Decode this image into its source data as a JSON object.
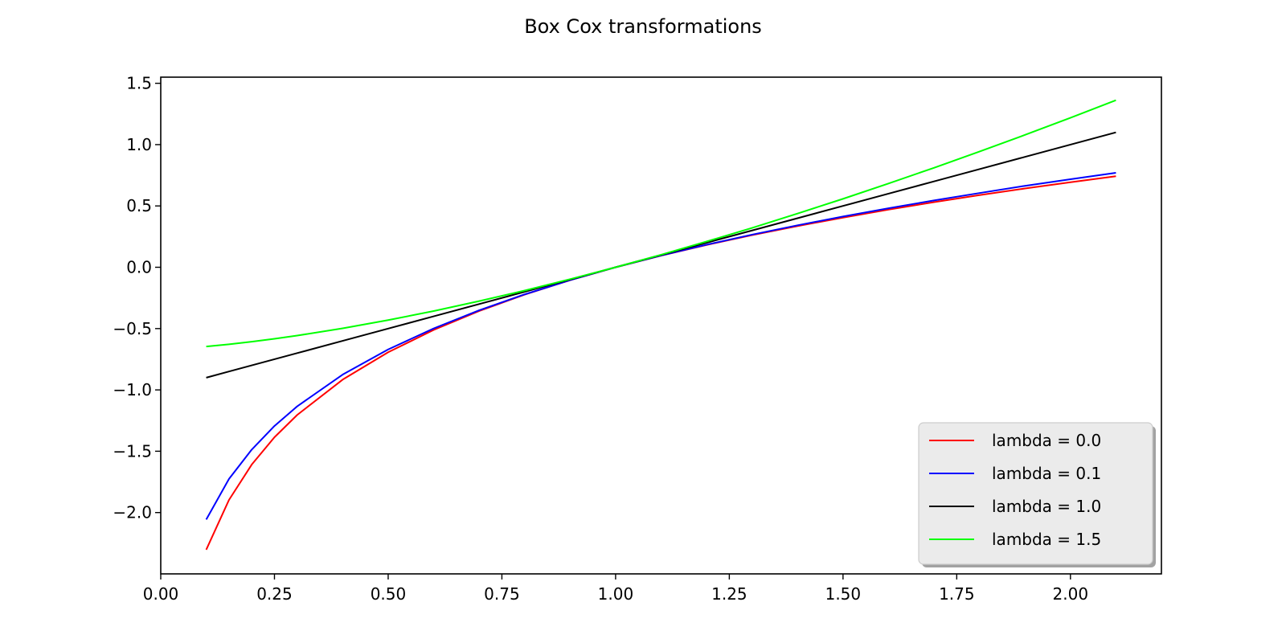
{
  "chart_data": {
    "type": "line",
    "title": "Box Cox transformations",
    "xlabel": "",
    "ylabel": "",
    "xlim": [
      0.0,
      2.2
    ],
    "ylim": [
      -2.5,
      1.55
    ],
    "x_ticks": [
      0.0,
      0.25,
      0.5,
      0.75,
      1.0,
      1.25,
      1.5,
      1.75,
      2.0
    ],
    "x_tick_labels": [
      "0.00",
      "0.25",
      "0.50",
      "0.75",
      "1.00",
      "1.25",
      "1.50",
      "1.75",
      "2.00"
    ],
    "y_ticks": [
      -2.0,
      -1.5,
      -1.0,
      -0.5,
      0.0,
      0.5,
      1.0,
      1.5
    ],
    "y_tick_labels": [
      "−2.0",
      "−1.5",
      "−1.0",
      "−0.5",
      "0.0",
      "0.5",
      "1.0",
      "1.5"
    ],
    "grid": false,
    "legend_position": "lower-right",
    "x": [
      0.1,
      0.15,
      0.2,
      0.25,
      0.3,
      0.4,
      0.5,
      0.6,
      0.7,
      0.8,
      0.9,
      1.0,
      1.1,
      1.2,
      1.3,
      1.4,
      1.5,
      1.6,
      1.7,
      1.8,
      1.9,
      2.0,
      2.1
    ],
    "series": [
      {
        "name": "lambda = 0.0",
        "color": "#ff0000",
        "values": [
          -2.303,
          -1.897,
          -1.609,
          -1.386,
          -1.204,
          -0.916,
          -0.693,
          -0.511,
          -0.357,
          -0.223,
          -0.105,
          0.0,
          0.095,
          0.182,
          0.262,
          0.336,
          0.405,
          0.47,
          0.531,
          0.588,
          0.642,
          0.693,
          0.742
        ]
      },
      {
        "name": "lambda = 0.1",
        "color": "#0000ff",
        "values": [
          -2.057,
          -1.726,
          -1.487,
          -1.294,
          -1.134,
          -0.875,
          -0.67,
          -0.499,
          -0.351,
          -0.221,
          -0.105,
          0.0,
          0.096,
          0.184,
          0.266,
          0.342,
          0.414,
          0.481,
          0.545,
          0.605,
          0.664,
          0.718,
          0.77
        ]
      },
      {
        "name": "lambda = 1.0",
        "color": "#000000",
        "values": [
          -0.9,
          -0.85,
          -0.8,
          -0.75,
          -0.7,
          -0.6,
          -0.5,
          -0.4,
          -0.3,
          -0.2,
          -0.1,
          0.0,
          0.1,
          0.2,
          0.3,
          0.4,
          0.5,
          0.6,
          0.7,
          0.8,
          0.9,
          1.0,
          1.1
        ]
      },
      {
        "name": "lambda = 1.5",
        "color": "#00ff00",
        "values": [
          -0.646,
          -0.628,
          -0.607,
          -0.583,
          -0.557,
          -0.498,
          -0.431,
          -0.357,
          -0.276,
          -0.19,
          -0.097,
          0.0,
          0.102,
          0.21,
          0.321,
          0.438,
          0.558,
          0.683,
          0.811,
          0.943,
          1.079,
          1.219,
          1.362
        ]
      }
    ]
  }
}
